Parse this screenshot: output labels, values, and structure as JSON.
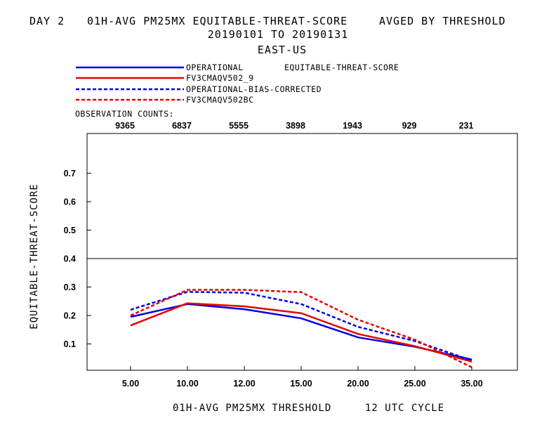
{
  "title": {
    "line1_left": "DAY 2",
    "line1_mid": "01H-AVG PM25MX EQUITABLE-THREAT-SCORE",
    "line1_right": "AVGED BY THRESHOLD",
    "line2": "20190101 TO 20190131",
    "line3": "EAST-US"
  },
  "legend": {
    "stat_label": "EQUITABLE-THREAT-SCORE",
    "obs_counts_label": "OBSERVATION COUNTS:"
  },
  "colors": {
    "blue": "#0000e6",
    "red": "#e60000"
  },
  "chart_data": {
    "type": "line",
    "xlabel": "01H-AVG PM25MX THRESHOLD",
    "cycle_label": "12 UTC CYCLE",
    "ylabel": "EQUITABLE-THREAT-SCORE",
    "categories": [
      "5.00",
      "10.00",
      "12.00",
      "15.00",
      "20.00",
      "25.00",
      "35.00"
    ],
    "observation_counts": [
      "9365",
      "6837",
      "5555",
      "3898",
      "1943",
      "929",
      "231"
    ],
    "yticks": [
      "0.1",
      "0.2",
      "0.3",
      "0.4",
      "0.5",
      "0.6",
      "0.7"
    ],
    "ylim": [
      0,
      0.84
    ],
    "reference_line": 0.4,
    "grid": false,
    "legend_position": "top-left",
    "series": [
      {
        "name": "OPERATIONAL",
        "color": "#0000e6",
        "dash": false,
        "values": [
          0.195,
          0.24,
          0.222,
          0.19,
          0.123,
          0.09,
          0.045
        ]
      },
      {
        "name": "FV3CMAQV502_9",
        "color": "#e60000",
        "dash": false,
        "values": [
          0.165,
          0.243,
          0.232,
          0.208,
          0.135,
          0.092,
          0.038
        ]
      },
      {
        "name": "OPERATIONAL-BIAS-CORRECTED",
        "color": "#0000e6",
        "dash": true,
        "values": [
          0.22,
          0.283,
          0.28,
          0.24,
          0.16,
          0.11,
          0.042
        ]
      },
      {
        "name": "FV3CMAQV502BC",
        "color": "#e60000",
        "dash": true,
        "values": [
          0.2,
          0.29,
          0.29,
          0.282,
          0.185,
          0.115,
          0.018
        ]
      }
    ]
  }
}
